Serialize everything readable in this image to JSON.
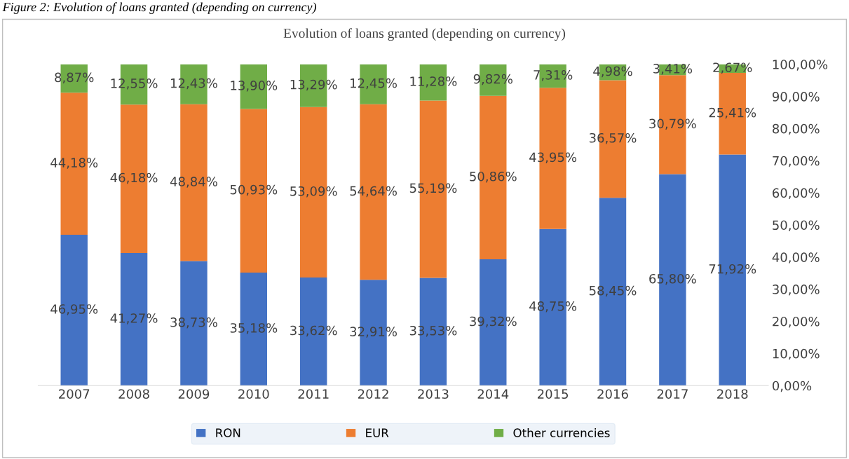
{
  "chart_data": {
    "type": "bar",
    "title": "Evolution of loans granted (depending on currency)",
    "annotations": [
      "Figure 2: Evolution of loans granted (depending on currency)"
    ],
    "categories": [
      "2007",
      "2008",
      "2009",
      "2010",
      "2011",
      "2012",
      "2013",
      "2014",
      "2015",
      "2016",
      "2017",
      "2018"
    ],
    "stacked": true,
    "series": [
      {
        "name": "RON",
        "color": "#4472c4",
        "values": [
          46.95,
          41.27,
          38.73,
          35.18,
          33.62,
          32.91,
          33.53,
          39.32,
          48.75,
          58.45,
          65.8,
          71.92
        ],
        "value_labels": [
          "46,95%",
          "41,27%",
          "38,73%",
          "35,18%",
          "33,62%",
          "32,91%",
          "33,53%",
          "39,32%",
          "48,75%",
          "58,45%",
          "65,80%",
          "71,92%"
        ]
      },
      {
        "name": "EUR",
        "color": "#ed7d31",
        "values": [
          44.18,
          46.18,
          48.84,
          50.93,
          53.09,
          54.64,
          55.19,
          50.86,
          43.95,
          36.57,
          30.79,
          25.41
        ],
        "value_labels": [
          "44,18%",
          "46,18%",
          "48,84%",
          "50,93%",
          "53,09%",
          "54,64%",
          "55,19%",
          "50,86%",
          "43,95%",
          "36,57%",
          "30,79%",
          "25,41%"
        ]
      },
      {
        "name": "Other currencies",
        "color": "#70ad47",
        "values": [
          8.87,
          12.55,
          12.43,
          13.9,
          13.29,
          12.45,
          11.28,
          9.82,
          7.31,
          4.98,
          3.41,
          2.67
        ],
        "value_labels": [
          "8,87%",
          "12,55%",
          "12,43%",
          "13,90%",
          "13,29%",
          "12,45%",
          "11,28%",
          "9,82%",
          "7,31%",
          "4,98%",
          "3,41%",
          "2,67%"
        ]
      }
    ],
    "ylim": [
      0,
      100
    ],
    "yticks": [
      {
        "value": 0,
        "label": "0,00%"
      },
      {
        "value": 10,
        "label": "10,00%"
      },
      {
        "value": 20,
        "label": "20,00%"
      },
      {
        "value": 30,
        "label": "30,00%"
      },
      {
        "value": 40,
        "label": "40,00%"
      },
      {
        "value": 50,
        "label": "50,00%"
      },
      {
        "value": 60,
        "label": "60,00%"
      },
      {
        "value": 70,
        "label": "70,00%"
      },
      {
        "value": 80,
        "label": "80,00%"
      },
      {
        "value": 90,
        "label": "90,00%"
      },
      {
        "value": 100,
        "label": "100,00%"
      }
    ],
    "grid": false,
    "legend": "bottom"
  }
}
